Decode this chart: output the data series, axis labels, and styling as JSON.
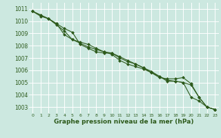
{
  "hours": [
    0,
    1,
    2,
    3,
    4,
    5,
    6,
    7,
    8,
    9,
    10,
    11,
    12,
    13,
    14,
    15,
    16,
    17,
    18,
    19,
    20,
    21,
    22,
    23
  ],
  "line1": [
    1010.8,
    1010.5,
    1010.2,
    1009.8,
    1009.4,
    1009.1,
    1008.1,
    1007.8,
    1007.5,
    1007.4,
    1007.4,
    1007.0,
    1006.7,
    1006.5,
    1006.2,
    1005.8,
    1005.4,
    1005.3,
    1005.3,
    1005.4,
    1004.9,
    1003.8,
    1003.0,
    1002.8
  ],
  "line2": [
    1010.8,
    1010.4,
    1010.2,
    1009.7,
    1009.2,
    1008.5,
    1008.3,
    1008.1,
    1007.8,
    1007.5,
    1007.4,
    1007.1,
    1006.8,
    1006.5,
    1006.2,
    1005.9,
    1005.5,
    1005.1,
    1005.1,
    1005.0,
    1003.8,
    1003.5,
    1003.0,
    1002.8
  ],
  "line3": [
    1010.8,
    1010.5,
    1010.2,
    1009.8,
    1008.9,
    1008.5,
    1008.2,
    1007.9,
    1007.7,
    1007.5,
    1007.3,
    1006.8,
    1006.5,
    1006.3,
    1006.1,
    1005.8,
    1005.5,
    1005.2,
    1005.1,
    1005.0,
    1004.8,
    1003.8,
    1003.0,
    1002.8
  ],
  "line_color": "#2d5a1b",
  "marker": "D",
  "marker_size": 2,
  "bg_color": "#cce8e0",
  "grid_color": "#ffffff",
  "ylim": [
    1002.5,
    1011.5
  ],
  "yticks": [
    1003,
    1004,
    1005,
    1006,
    1007,
    1008,
    1009,
    1010,
    1011
  ],
  "xlabel": "Graphe pression niveau de la mer (hPa)",
  "xlabel_color": "#2d5a1b",
  "tick_color": "#2d5a1b",
  "xlabel_fontsize": 6.5,
  "ytick_fontsize": 5.5,
  "xtick_fontsize": 4.5
}
